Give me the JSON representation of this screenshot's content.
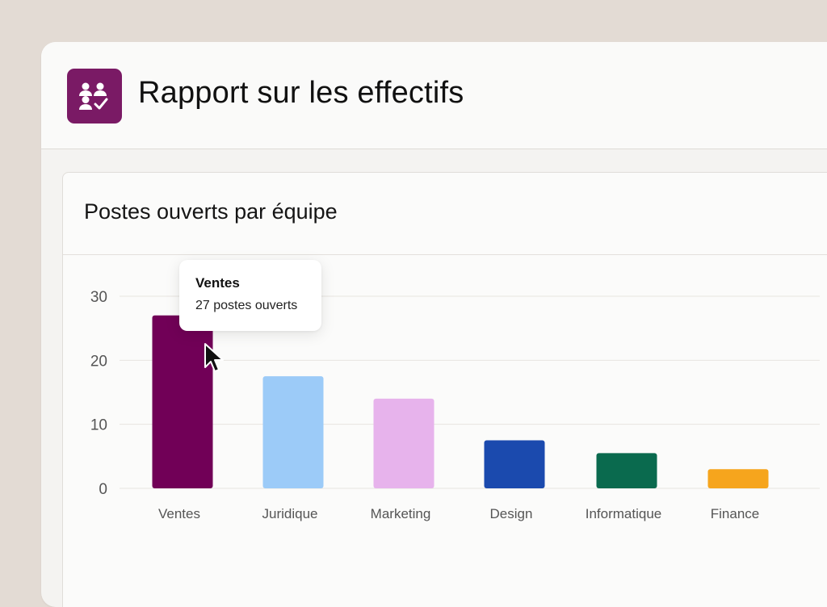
{
  "header": {
    "title": "Rapport sur les effectifs",
    "icon": "team-check-icon",
    "icon_color": "#7a1a65"
  },
  "card": {
    "title": "Postes ouverts par équipe"
  },
  "tooltip": {
    "title": "Ventes",
    "value": "27 postes ouverts"
  },
  "chart_data": {
    "type": "bar",
    "title": "Postes ouverts par équipe",
    "categories": [
      "Ventes",
      "Juridique",
      "Marketing",
      "Design",
      "Informatique",
      "Finance"
    ],
    "values": [
      27,
      17.5,
      14,
      7.5,
      5.5,
      3
    ],
    "colors": [
      "#710057",
      "#9ccbf8",
      "#e7b3ec",
      "#1b4aae",
      "#0a6a4e",
      "#f6a51d"
    ],
    "yticks": [
      0,
      10,
      20,
      30
    ],
    "ylim": [
      0,
      30
    ],
    "grid": true,
    "legend": "none",
    "xlabel": "",
    "ylabel": ""
  }
}
